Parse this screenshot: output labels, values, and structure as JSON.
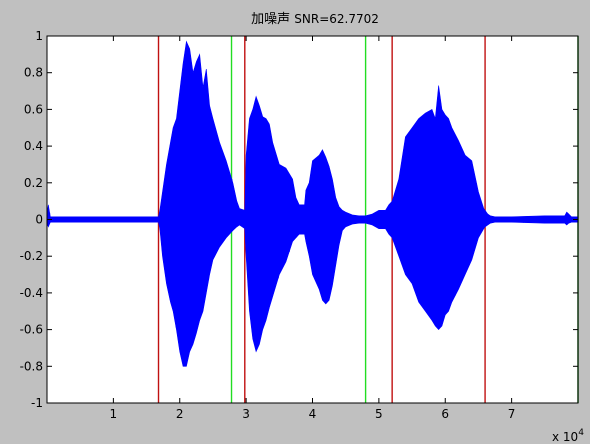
{
  "figure": {
    "background": "#c0c0c0",
    "axes_background": "#ffffff"
  },
  "chart_data": {
    "type": "line",
    "title_cn": "加噪声",
    "title_snr": "SNR=62.7702",
    "title": "加噪声 SNR=62.7702",
    "xlabel": "",
    "ylabel": "",
    "xlim": [
      0,
      80000
    ],
    "ylim": [
      -1,
      1
    ],
    "x_ticks": [
      10000,
      20000,
      30000,
      40000,
      50000,
      60000,
      70000
    ],
    "x_tick_labels": [
      "1",
      "2",
      "3",
      "4",
      "5",
      "6",
      "7"
    ],
    "x_exponent_base": "x 10",
    "x_exponent_power": "4",
    "y_ticks": [
      -1,
      -0.8,
      -0.6,
      -0.4,
      -0.2,
      0,
      0.2,
      0.4,
      0.6,
      0.8,
      1
    ],
    "y_tick_labels": [
      "-1",
      "-0.8",
      "-0.6",
      "-0.4",
      "-0.2",
      "0",
      "0.2",
      "0.4",
      "0.6",
      "0.8",
      "1"
    ],
    "grid": false,
    "series": [
      {
        "color": "#0000ff",
        "envelope": {
          "x": [
            0,
            200,
            500,
            16800,
            17000,
            17400,
            18000,
            18600,
            19000,
            19500,
            20000,
            20500,
            21000,
            21500,
            22000,
            22500,
            23000,
            23500,
            24000,
            24500,
            25000,
            26000,
            27000,
            28000,
            28600,
            29000,
            29800,
            30000,
            30500,
            31000,
            31500,
            32000,
            32500,
            33000,
            33500,
            34000,
            35000,
            36000,
            37000,
            37500,
            38000,
            38800,
            39000,
            39500,
            40000,
            41000,
            41500,
            42000,
            42500,
            43000,
            43500,
            44000,
            44500,
            45000,
            46000,
            47000,
            47500,
            48000,
            49000,
            50000,
            51000,
            51500,
            52000,
            53000,
            54000,
            55000,
            56000,
            57000,
            58000,
            58500,
            59000,
            59500,
            60000,
            60500,
            61000,
            62000,
            63000,
            64000,
            65000,
            65800,
            66000,
            66400,
            66800,
            67500,
            70000,
            75000,
            78000,
            78300,
            78600,
            79000,
            80000
          ],
          "upper": [
            0.03,
            0.08,
            0.015,
            0.015,
            0.05,
            0.15,
            0.3,
            0.42,
            0.5,
            0.55,
            0.7,
            0.85,
            0.97,
            0.93,
            0.8,
            0.86,
            0.9,
            0.72,
            0.82,
            0.62,
            0.55,
            0.42,
            0.32,
            0.2,
            0.1,
            0.06,
            0.05,
            0.35,
            0.55,
            0.6,
            0.67,
            0.62,
            0.56,
            0.55,
            0.52,
            0.42,
            0.3,
            0.28,
            0.22,
            0.12,
            0.08,
            0.08,
            0.16,
            0.2,
            0.32,
            0.35,
            0.38,
            0.34,
            0.29,
            0.22,
            0.12,
            0.07,
            0.05,
            0.04,
            0.025,
            0.02,
            0.02,
            0.02,
            0.03,
            0.05,
            0.05,
            0.08,
            0.1,
            0.22,
            0.45,
            0.5,
            0.55,
            0.58,
            0.6,
            0.55,
            0.73,
            0.6,
            0.57,
            0.55,
            0.5,
            0.43,
            0.35,
            0.32,
            0.15,
            0.06,
            0.05,
            0.03,
            0.02,
            0.015,
            0.015,
            0.02,
            0.02,
            0.04,
            0.03,
            0.015,
            0.015
          ],
          "lower": [
            -0.02,
            -0.04,
            -0.015,
            -0.015,
            -0.05,
            -0.2,
            -0.35,
            -0.45,
            -0.5,
            -0.6,
            -0.72,
            -0.8,
            -0.8,
            -0.72,
            -0.68,
            -0.62,
            -0.55,
            -0.5,
            -0.4,
            -0.3,
            -0.22,
            -0.15,
            -0.1,
            -0.06,
            -0.04,
            -0.03,
            -0.05,
            -0.2,
            -0.5,
            -0.65,
            -0.72,
            -0.68,
            -0.6,
            -0.55,
            -0.48,
            -0.42,
            -0.3,
            -0.23,
            -0.12,
            -0.1,
            -0.08,
            -0.08,
            -0.12,
            -0.2,
            -0.3,
            -0.38,
            -0.44,
            -0.46,
            -0.44,
            -0.36,
            -0.25,
            -0.14,
            -0.06,
            -0.04,
            -0.025,
            -0.02,
            -0.02,
            -0.02,
            -0.03,
            -0.05,
            -0.05,
            -0.08,
            -0.1,
            -0.2,
            -0.3,
            -0.35,
            -0.45,
            -0.5,
            -0.55,
            -0.58,
            -0.6,
            -0.58,
            -0.52,
            -0.5,
            -0.45,
            -0.38,
            -0.3,
            -0.22,
            -0.1,
            -0.05,
            -0.04,
            -0.03,
            -0.02,
            -0.015,
            -0.015,
            -0.02,
            -0.02,
            -0.03,
            -0.02,
            -0.015,
            -0.015
          ]
        }
      }
    ],
    "vertical_markers": [
      {
        "x": 16800,
        "color": "#c01010"
      },
      {
        "x": 27800,
        "color": "#22dd22"
      },
      {
        "x": 29800,
        "color": "#c01010"
      },
      {
        "x": 48000,
        "color": "#22dd22"
      },
      {
        "x": 52000,
        "color": "#c01010"
      },
      {
        "x": 66000,
        "color": "#c01010"
      },
      {
        "x": 80000,
        "color": "#008800"
      }
    ]
  }
}
